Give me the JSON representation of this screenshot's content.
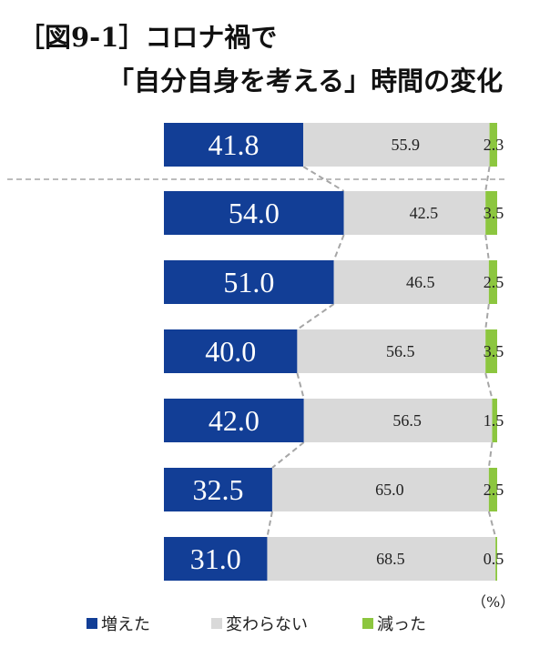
{
  "title": {
    "line1": "［図9‑1］コロナ禍で",
    "line2": "「自分自身を考える」時間の変化"
  },
  "unit_label": "（%）",
  "colors": {
    "increased": "#123e96",
    "unchanged": "#d9d9d9",
    "decreased": "#8cc63f",
    "connector": "#a6a6a6"
  },
  "legend": [
    {
      "label": "増えた",
      "color_key": "increased"
    },
    {
      "label": "変わらない",
      "color_key": "unchanged"
    },
    {
      "label": "減った",
      "color_key": "decreased"
    }
  ],
  "chart_data": {
    "type": "bar",
    "orientation": "horizontal",
    "stacked": true,
    "unit": "%",
    "categories": [
      "",
      "",
      "",
      "",
      "",
      "",
      ""
    ],
    "series": [
      {
        "name": "増えた",
        "values": [
          41.8,
          54.0,
          51.0,
          40.0,
          42.0,
          32.5,
          31.0
        ]
      },
      {
        "name": "変わらない",
        "values": [
          55.9,
          42.5,
          46.5,
          56.5,
          56.5,
          65.0,
          68.5
        ]
      },
      {
        "name": "減った",
        "values": [
          2.3,
          3.5,
          2.5,
          3.5,
          1.5,
          2.5,
          0.5
        ]
      }
    ],
    "value_labels": [
      [
        "41.8",
        "55.9",
        "2.3"
      ],
      [
        "54.0",
        "42.5",
        "3.5"
      ],
      [
        "51.0",
        "46.5",
        "2.5"
      ],
      [
        "40.0",
        "56.5",
        "3.5"
      ],
      [
        "42.0",
        "56.5",
        "1.5"
      ],
      [
        "32.5",
        "65.0",
        "2.5"
      ],
      [
        "31.0",
        "68.5",
        "0.5"
      ]
    ],
    "xlim": [
      0,
      100
    ],
    "grid": false,
    "legend_position": "bottom"
  }
}
